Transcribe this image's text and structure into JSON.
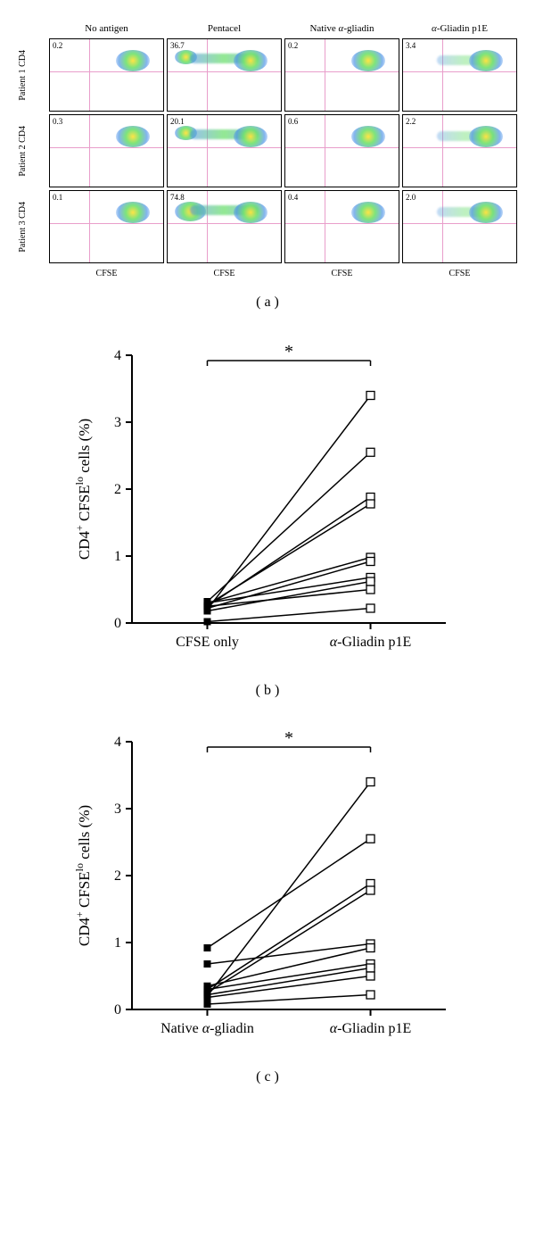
{
  "panelA": {
    "col_headers": [
      "No antigen",
      "Pentacel",
      "Native α-gliadin",
      "α-Gliadin p1E"
    ],
    "row_headers": [
      "Patient 1\nCD4",
      "Patient 2\nCD4",
      "Patient 3\nCD4"
    ],
    "x_axis_label": "CFSE",
    "cells": [
      [
        {
          "v": "0.2",
          "t": "single"
        },
        {
          "v": "36.7",
          "t": "double"
        },
        {
          "v": "0.2",
          "t": "single"
        },
        {
          "v": "3.4",
          "t": "trail"
        }
      ],
      [
        {
          "v": "0.3",
          "t": "single"
        },
        {
          "v": "20.1",
          "t": "double"
        },
        {
          "v": "0.6",
          "t": "single"
        },
        {
          "v": "2.2",
          "t": "trail"
        }
      ],
      [
        {
          "v": "0.1",
          "t": "single"
        },
        {
          "v": "74.8",
          "t": "double_big"
        },
        {
          "v": "0.4",
          "t": "single"
        },
        {
          "v": "2.0",
          "t": "trail"
        }
      ]
    ],
    "label": "( a )",
    "quad_color": "#e99ecb"
  },
  "panelB": {
    "ylabel": "CD4⁺ CFSEˡᵒ cells (%)",
    "x_categories": [
      "CFSE only",
      "α-Gliadin p1E"
    ],
    "ylim": [
      0,
      4
    ],
    "ytick_step": 1,
    "sig_label": "*",
    "marker_left": {
      "shape": "filled-square",
      "fill": "#000000",
      "size": 8
    },
    "marker_right": {
      "shape": "open-square",
      "fill": "#ffffff",
      "stroke": "#000000",
      "size": 9
    },
    "line_color": "#000000",
    "pairs": [
      [
        0.2,
        3.4
      ],
      [
        0.32,
        2.55
      ],
      [
        0.25,
        1.88
      ],
      [
        0.27,
        1.78
      ],
      [
        0.3,
        0.98
      ],
      [
        0.22,
        0.92
      ],
      [
        0.3,
        0.68
      ],
      [
        0.18,
        0.62
      ],
      [
        0.25,
        0.5
      ],
      [
        0.02,
        0.22
      ]
    ],
    "label": "( b )"
  },
  "panelC": {
    "ylabel": "CD4⁺ CFSEˡᵒ cells (%)",
    "x_categories": [
      "Native α-gliadin",
      "α-Gliadin p1E"
    ],
    "ylim": [
      0,
      4
    ],
    "ytick_step": 1,
    "sig_label": "*",
    "marker_left": {
      "shape": "filled-square",
      "fill": "#000000",
      "size": 8
    },
    "marker_right": {
      "shape": "open-square",
      "fill": "#ffffff",
      "stroke": "#000000",
      "size": 9
    },
    "line_color": "#000000",
    "pairs": [
      [
        0.2,
        3.4
      ],
      [
        0.92,
        2.55
      ],
      [
        0.3,
        1.88
      ],
      [
        0.25,
        1.78
      ],
      [
        0.68,
        0.98
      ],
      [
        0.35,
        0.92
      ],
      [
        0.3,
        0.68
      ],
      [
        0.22,
        0.62
      ],
      [
        0.18,
        0.5
      ],
      [
        0.08,
        0.22
      ]
    ],
    "label": "( c )"
  },
  "colors": {
    "axis": "#000000",
    "background": "#ffffff"
  }
}
